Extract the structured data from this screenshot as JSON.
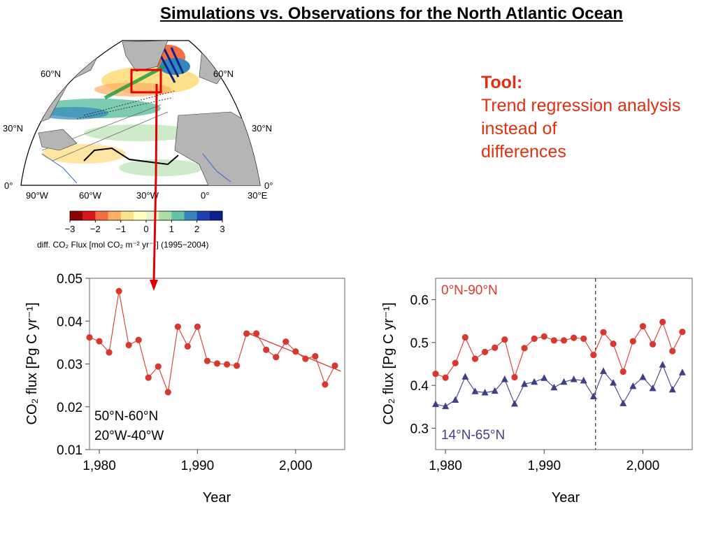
{
  "slide": {
    "title": "Simulations vs. Observations for the North Atlantic Ocean",
    "tool_heading": "Tool:",
    "tool_lines": [
      "Trend regression analysis",
      "instead of",
      "differences"
    ],
    "colors": {
      "accent": "#e0300f",
      "arrow": "#e00000",
      "red_series": "#d8392f",
      "blue_series": "#3f3f87"
    }
  },
  "map": {
    "lat_labels_left": [
      "60°N",
      "30°N",
      "0°"
    ],
    "lat_labels_right": [
      "60°N",
      "30°N",
      "0°"
    ],
    "lon_labels": [
      "90°W",
      "60°W",
      "30°W",
      "0°",
      "30°E"
    ],
    "colorbar_ticks": [
      "−3",
      "−2",
      "−1",
      "0",
      "1",
      "2",
      "3"
    ],
    "colorbar_label": "diff. CO₂ Flux [mol CO₂ m⁻² yr⁻¹] (1995−2004)",
    "colorbar_colors": [
      "#8b0000",
      "#d7191c",
      "#f46d43",
      "#fdae61",
      "#fee08b",
      "#ffffbf",
      "#e6f5d0",
      "#abdda4",
      "#66c2a5",
      "#3288bd",
      "#1f3fb4",
      "#0c1f8c"
    ]
  },
  "chart_data": [
    {
      "type": "line",
      "xlabel": "Year",
      "ylabel": "CO₂ flux [Pg C yr⁻¹]",
      "xlim": [
        1979,
        2005
      ],
      "ylim": [
        0.01,
        0.05
      ],
      "x_ticks": [
        1980,
        1990,
        2000
      ],
      "x_tick_labels": [
        "1,980",
        "1,990",
        "2,000"
      ],
      "y_ticks": [
        0.01,
        0.02,
        0.03,
        0.04,
        0.05
      ],
      "y_tick_labels": [
        "0.01",
        "0.02",
        "0.03",
        "0.04",
        "0.05"
      ],
      "annotation": [
        "50°N-60°N",
        "20°W-40°W"
      ],
      "series": [
        {
          "color": "#d8392f",
          "x": [
            1979,
            1980,
            1981,
            1982,
            1983,
            1984,
            1985,
            1986,
            1987,
            1988,
            1989,
            1990,
            1991,
            1992,
            1993,
            1994,
            1995,
            1996,
            1997,
            1998,
            1999,
            2000,
            2001,
            2002,
            2003,
            2004
          ],
          "y": [
            0.0362,
            0.0353,
            0.0327,
            0.047,
            0.0344,
            0.0356,
            0.0268,
            0.0294,
            0.0234,
            0.0387,
            0.0341,
            0.0387,
            0.0307,
            0.0301,
            0.0299,
            0.0296,
            0.0371,
            0.0371,
            0.0333,
            0.0316,
            0.0352,
            0.0329,
            0.0312,
            0.0318,
            0.0252,
            0.0296
          ]
        }
      ],
      "trend": {
        "x": [
          1995,
          2004.6
        ],
        "y": [
          0.0373,
          0.0283
        ]
      }
    },
    {
      "type": "line",
      "xlabel": "Year",
      "ylabel": "CO₂ flux [Pg C yr⁻¹]",
      "xlim": [
        1979,
        2005
      ],
      "ylim": [
        0.25,
        0.65
      ],
      "x_ticks": [
        1980,
        1990,
        2000
      ],
      "x_tick_labels": [
        "1,980",
        "1,990",
        "2,000"
      ],
      "y_ticks": [
        0.3,
        0.4,
        0.5,
        0.6
      ],
      "y_tick_labels": [
        "0.3",
        "0.4",
        "0.5",
        "0.6"
      ],
      "vline_x": 1995.2,
      "series": [
        {
          "name": "0°N-90°N",
          "color": "#d8392f",
          "marker": "circle",
          "x": [
            1979,
            1980,
            1981,
            1982,
            1983,
            1984,
            1985,
            1986,
            1987,
            1988,
            1989,
            1990,
            1991,
            1992,
            1993,
            1994,
            1995,
            1996,
            1997,
            1998,
            1999,
            2000,
            2001,
            2002,
            2003,
            2004
          ],
          "y": [
            0.427,
            0.418,
            0.452,
            0.512,
            0.462,
            0.478,
            0.488,
            0.507,
            0.419,
            0.487,
            0.509,
            0.514,
            0.505,
            0.505,
            0.511,
            0.509,
            0.471,
            0.524,
            0.497,
            0.432,
            0.503,
            0.538,
            0.496,
            0.548,
            0.48,
            0.525
          ]
        },
        {
          "name": "14°N-65°N",
          "color": "#3f3f87",
          "marker": "triangle",
          "x": [
            1979,
            1980,
            1981,
            1982,
            1983,
            1984,
            1985,
            1986,
            1987,
            1988,
            1989,
            1990,
            1991,
            1992,
            1993,
            1994,
            1995,
            1996,
            1997,
            1998,
            1999,
            2000,
            2001,
            2002,
            2003,
            2004
          ],
          "y": [
            0.356,
            0.351,
            0.366,
            0.42,
            0.386,
            0.383,
            0.387,
            0.414,
            0.357,
            0.403,
            0.408,
            0.417,
            0.395,
            0.408,
            0.414,
            0.411,
            0.374,
            0.433,
            0.406,
            0.358,
            0.398,
            0.419,
            0.393,
            0.448,
            0.39,
            0.43
          ]
        }
      ]
    }
  ]
}
